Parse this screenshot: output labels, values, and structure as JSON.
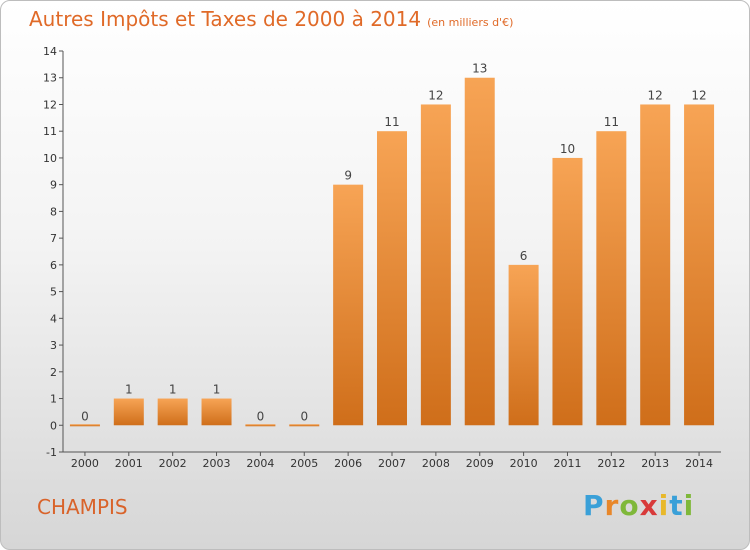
{
  "header": {
    "title": "Autres Impôts et Taxes de 2000 à 2014",
    "subtitle": "(en milliers d'€)"
  },
  "footer": {
    "town": "CHAMPIS",
    "logo": [
      "P",
      "r",
      "o",
      "x",
      "i",
      "t",
      "i"
    ]
  },
  "colors": {
    "bar_light": "#f7a455",
    "bar_dark": "#cf6e1a",
    "title": "#e06a28",
    "logo": [
      "#3aa0d8",
      "#e8872a",
      "#7fb83a",
      "#d83a3a",
      "#e8b82a",
      "#3aa0d8",
      "#7fb83a"
    ]
  },
  "chart_data": {
    "type": "bar",
    "categories": [
      "2000",
      "2001",
      "2002",
      "2003",
      "2004",
      "2005",
      "2006",
      "2007",
      "2008",
      "2009",
      "2010",
      "2011",
      "2012",
      "2013",
      "2014"
    ],
    "values": [
      0,
      1,
      1,
      1,
      0,
      0,
      9,
      11,
      12,
      13,
      6,
      10,
      11,
      12,
      12
    ],
    "ylim": [
      -1,
      14
    ],
    "yticks": [
      "-1",
      "0",
      "1",
      "2",
      "3",
      "4",
      "5",
      "6",
      "7",
      "8",
      "9",
      "10",
      "11",
      "12",
      "13",
      "14"
    ],
    "grid": false
  }
}
